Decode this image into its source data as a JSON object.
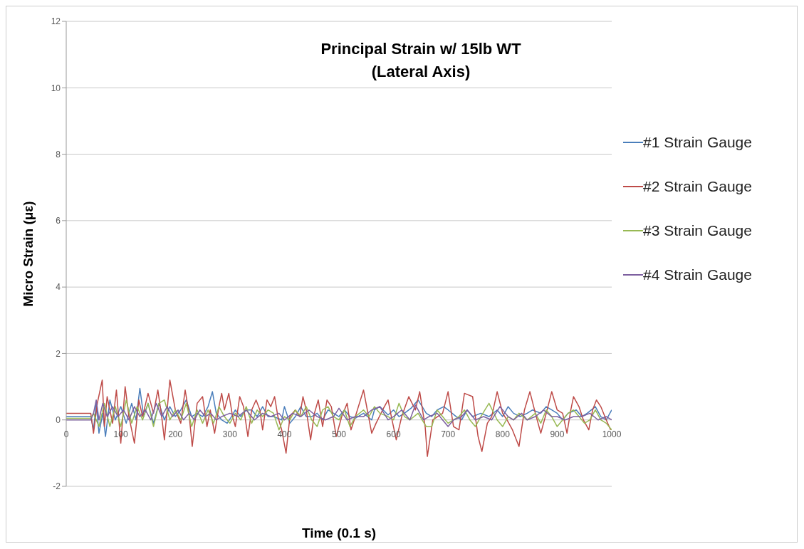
{
  "chart_data": {
    "type": "line",
    "title": "Principal Strain w/ 15lb WT\n(Lateral Axis)",
    "xlabel": "Time (0.1 s)",
    "ylabel": "Micro Strain (με)",
    "xlim": [
      0,
      1000
    ],
    "xticks": [
      0,
      100,
      200,
      300,
      400,
      500,
      600,
      700,
      800,
      900,
      1000
    ],
    "ylim": [
      -2,
      12
    ],
    "yticks": [
      -2,
      0,
      2,
      4,
      6,
      8,
      10,
      12
    ],
    "grid": "y",
    "legend": "right",
    "marker": "none",
    "line_style": "solid",
    "series": [
      {
        "name": "#1 Strain Gauge",
        "color": "#4a7ebb",
        "x": [
          0,
          45,
          50,
          55,
          60,
          67,
          72,
          80,
          90,
          100,
          110,
          120,
          128,
          135,
          142,
          150,
          160,
          170,
          180,
          190,
          200,
          210,
          220,
          230,
          240,
          250,
          260,
          268,
          275,
          285,
          295,
          303,
          310,
          320,
          330,
          340,
          350,
          360,
          370,
          380,
          395,
          400,
          410,
          420,
          430,
          440,
          450,
          460,
          470,
          480,
          490,
          500,
          510,
          520,
          530,
          545,
          560,
          565,
          575,
          590,
          600,
          610,
          620,
          632,
          645,
          660,
          670,
          680,
          692,
          700,
          715,
          725,
          735,
          745,
          760,
          775,
          790,
          800,
          810,
          820,
          832,
          845,
          855,
          870,
          880,
          890,
          900,
          910,
          920,
          935,
          945,
          955,
          970,
          980,
          990,
          1000
        ],
        "values": [
          0.1,
          0.1,
          -0.3,
          0.5,
          -0.4,
          0.2,
          -0.5,
          0.6,
          0.0,
          0.4,
          -0.1,
          0.5,
          0.0,
          0.95,
          0.1,
          0.5,
          -0.1,
          0.5,
          0.0,
          0.4,
          0.1,
          0.3,
          0.6,
          0.1,
          0.2,
          0.1,
          0.4,
          0.85,
          0.2,
          0.0,
          -0.1,
          0.1,
          0.3,
          0.1,
          0.3,
          0.3,
          0.1,
          0.4,
          0.1,
          0.1,
          0.0,
          0.4,
          -0.1,
          0.1,
          0.4,
          0.1,
          0.1,
          0.2,
          0.0,
          0.3,
          0.2,
          0.1,
          0.3,
          0.1,
          0.05,
          0.2,
          0.0,
          0.3,
          0.4,
          0.15,
          0.3,
          0.1,
          0.2,
          0.35,
          0.6,
          0.2,
          0.1,
          0.3,
          0.4,
          0.3,
          0.1,
          0.0,
          0.3,
          0.1,
          0.2,
          0.1,
          0.3,
          0.1,
          0.4,
          0.2,
          0.1,
          0.2,
          0.3,
          0.2,
          0.4,
          0.3,
          0.2,
          0.0,
          0.2,
          0.3,
          0.1,
          0.2,
          0.4,
          0.1,
          0.0,
          0.3
        ]
      },
      {
        "name": "#2 Strain Gauge",
        "color": "#be4b48",
        "x": [
          0,
          45,
          50,
          57,
          66,
          70,
          75,
          85,
          92,
          100,
          108,
          115,
          125,
          133,
          140,
          150,
          160,
          168,
          175,
          180,
          190,
          200,
          210,
          218,
          225,
          231,
          240,
          250,
          258,
          264,
          272,
          280,
          285,
          290,
          298,
          305,
          310,
          318,
          325,
          333,
          340,
          348,
          355,
          360,
          368,
          375,
          382,
          388,
          395,
          403,
          410,
          420,
          428,
          434,
          440,
          448,
          455,
          462,
          470,
          478,
          486,
          495,
          505,
          515,
          522,
          530,
          545,
          560,
          568,
          580,
          590,
          596,
          605,
          615,
          628,
          640,
          648,
          658,
          662,
          672,
          690,
          700,
          710,
          720,
          730,
          745,
          755,
          762,
          772,
          780,
          790,
          800,
          808,
          818,
          830,
          840,
          850,
          860,
          870,
          880,
          890,
          900,
          910,
          918,
          925,
          930,
          940,
          948,
          958,
          965,
          972,
          980,
          990,
          998
        ],
        "values": [
          0.2,
          0.2,
          -0.4,
          0.5,
          1.2,
          -0.2,
          0.7,
          -0.1,
          0.9,
          -0.7,
          1.0,
          0.1,
          -0.7,
          0.6,
          0.1,
          0.8,
          0.2,
          0.9,
          0.1,
          -0.6,
          1.2,
          0.3,
          -0.1,
          0.9,
          0.2,
          -0.8,
          0.5,
          0.7,
          -0.2,
          0.3,
          -0.4,
          0.4,
          0.8,
          0.3,
          0.8,
          0.1,
          -0.2,
          0.7,
          0.4,
          -0.5,
          0.3,
          0.6,
          0.3,
          -0.3,
          0.6,
          0.4,
          0.7,
          0.1,
          -0.3,
          -1.0,
          0.1,
          0.3,
          0.1,
          0.7,
          0.3,
          -0.6,
          0.2,
          0.6,
          -0.2,
          0.6,
          0.4,
          -0.5,
          0.1,
          0.5,
          -0.3,
          0.1,
          0.9,
          -0.4,
          -0.1,
          0.3,
          0.6,
          0.1,
          -0.6,
          0.1,
          0.7,
          0.3,
          0.85,
          -0.2,
          -1.1,
          0.0,
          0.2,
          0.85,
          -0.2,
          -0.3,
          0.8,
          0.7,
          -0.5,
          -0.95,
          -0.1,
          0.1,
          0.85,
          0.2,
          0.0,
          -0.3,
          -0.8,
          0.3,
          0.85,
          0.2,
          -0.4,
          0.2,
          0.85,
          0.3,
          0.2,
          -0.4,
          0.3,
          0.7,
          0.4,
          0.0,
          -0.3,
          0.3,
          0.6,
          0.4,
          0.0,
          -0.3
        ]
      },
      {
        "name": "#3 Strain Gauge",
        "color": "#98b954",
        "x": [
          0,
          45,
          50,
          60,
          70,
          80,
          90,
          100,
          110,
          120,
          130,
          140,
          150,
          160,
          170,
          180,
          190,
          200,
          210,
          220,
          230,
          240,
          250,
          260,
          270,
          280,
          290,
          300,
          310,
          320,
          330,
          340,
          350,
          360,
          370,
          380,
          390,
          400,
          410,
          420,
          430,
          440,
          450,
          460,
          470,
          480,
          490,
          500,
          510,
          520,
          530,
          545,
          555,
          565,
          575,
          590,
          600,
          610,
          620,
          630,
          645,
          660,
          670,
          680,
          690,
          700,
          710,
          720,
          730,
          740,
          750,
          760,
          775,
          790,
          800,
          810,
          820,
          830,
          845,
          860,
          870,
          880,
          890,
          900,
          910,
          920,
          930,
          940,
          950,
          960,
          970,
          980,
          990,
          1000
        ],
        "values": [
          0.05,
          0.05,
          0.2,
          -0.2,
          0.5,
          -0.2,
          0.4,
          -0.2,
          0.6,
          -0.1,
          0.4,
          0.0,
          0.5,
          -0.2,
          0.5,
          0.6,
          0.0,
          0.3,
          0.0,
          0.5,
          -0.2,
          0.3,
          -0.1,
          0.3,
          -0.1,
          0.4,
          0.1,
          -0.1,
          0.2,
          0.0,
          0.4,
          -0.1,
          0.3,
          0.1,
          0.3,
          0.2,
          -0.3,
          0.1,
          0.0,
          0.3,
          0.1,
          0.4,
          0.0,
          -0.2,
          0.3,
          0.4,
          0.1,
          0.0,
          0.3,
          -0.2,
          0.1,
          0.3,
          0.1,
          0.4,
          0.2,
          0.1,
          0.0,
          0.5,
          0.1,
          0.0,
          0.2,
          -0.2,
          -0.2,
          0.3,
          0.1,
          -0.1,
          0.0,
          0.1,
          0.3,
          0.0,
          -0.2,
          0.1,
          0.5,
          0.0,
          -0.2,
          0.1,
          0.0,
          0.2,
          0.0,
          0.2,
          -0.1,
          0.3,
          0.1,
          -0.2,
          0.0,
          0.2,
          0.3,
          0.1,
          -0.1,
          0.0,
          0.3,
          0.0,
          -0.1,
          -0.3
        ]
      },
      {
        "name": "#4 Strain Gauge",
        "color": "#7d60a0",
        "x": [
          0,
          45,
          50,
          55,
          60,
          67,
          75,
          85,
          95,
          105,
          115,
          125,
          135,
          145,
          155,
          165,
          175,
          185,
          195,
          205,
          215,
          225,
          235,
          245,
          255,
          265,
          275,
          285,
          300,
          315,
          330,
          345,
          360,
          375,
          390,
          400,
          415,
          430,
          445,
          460,
          475,
          490,
          500,
          515,
          530,
          545,
          560,
          575,
          590,
          600,
          615,
          630,
          640,
          655,
          665,
          680,
          690,
          700,
          710,
          725,
          735,
          750,
          765,
          780,
          795,
          810,
          820,
          835,
          845,
          860,
          875,
          890,
          900,
          915,
          930,
          945,
          960,
          975,
          990,
          1000
        ],
        "values": [
          0.0,
          0.0,
          0.2,
          0.6,
          0.0,
          0.5,
          0.1,
          0.4,
          0.1,
          0.3,
          0.0,
          0.4,
          0.1,
          0.3,
          0.0,
          0.5,
          0.1,
          0.4,
          0.1,
          0.3,
          0.0,
          0.2,
          0.0,
          0.3,
          0.1,
          0.2,
          0.0,
          0.1,
          0.2,
          0.1,
          0.3,
          0.0,
          0.2,
          0.1,
          0.2,
          0.0,
          0.2,
          0.1,
          0.3,
          0.1,
          0.0,
          0.1,
          0.35,
          0.0,
          0.1,
          0.1,
          0.3,
          0.4,
          0.0,
          0.1,
          0.3,
          0.0,
          0.45,
          0.0,
          0.1,
          0.2,
          0.0,
          -0.2,
          0.0,
          0.1,
          0.3,
          0.0,
          0.1,
          0.0,
          0.4,
          0.1,
          0.0,
          0.2,
          0.0,
          0.1,
          0.3,
          0.1,
          0.1,
          0.0,
          0.1,
          0.1,
          0.2,
          0.0,
          0.1,
          0.0
        ]
      }
    ]
  }
}
